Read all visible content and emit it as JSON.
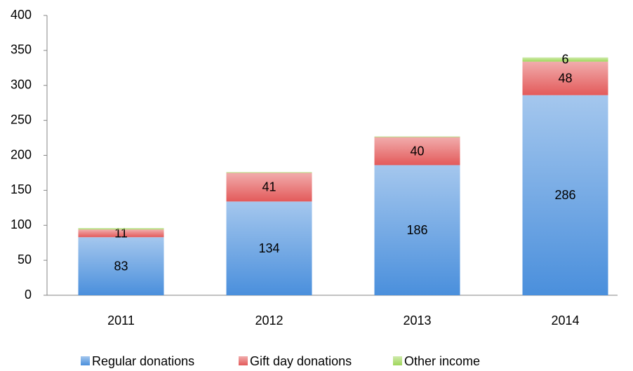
{
  "chart_data": {
    "type": "stacked_bar",
    "categories": [
      "2011",
      "2012",
      "2013",
      "2014"
    ],
    "series": [
      {
        "name": "Regular donations",
        "color": "#4a8fdc",
        "values": [
          83,
          134,
          186,
          286
        ]
      },
      {
        "name": "Gift day donations",
        "color": "#e35a5a",
        "values": [
          11,
          41,
          40,
          48
        ]
      },
      {
        "name": "Other income",
        "color": "#9fd65a",
        "values": [
          2,
          1,
          1,
          6
        ],
        "value_labels": [
          null,
          null,
          null,
          "6"
        ]
      }
    ],
    "ylim": [
      0,
      400
    ],
    "yticks": [
      0,
      50,
      100,
      150,
      200,
      250,
      300,
      350,
      400
    ],
    "grid": false,
    "legend": "bottom"
  }
}
